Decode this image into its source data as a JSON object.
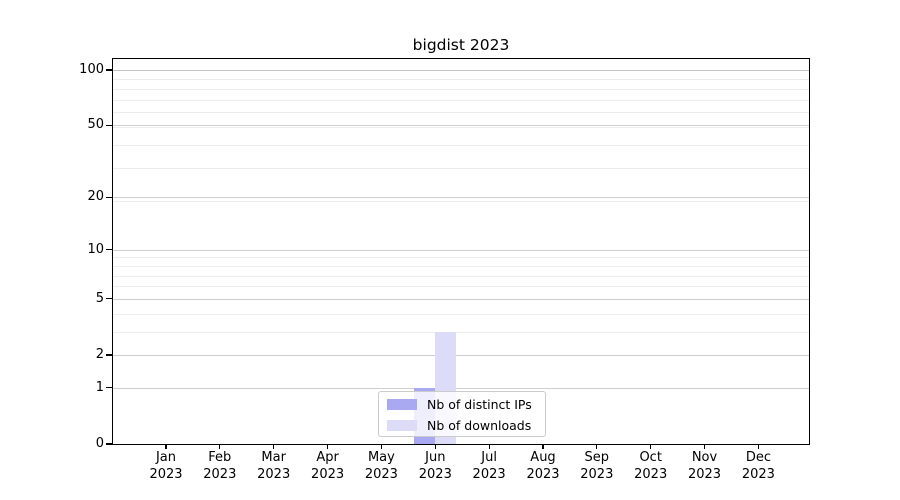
{
  "title": "bigdist 2023",
  "legend": {
    "items": [
      {
        "label": "Nb of distinct IPs",
        "color": "#a9a9f2"
      },
      {
        "label": "Nb of downloads",
        "color": "#dcdcf8"
      }
    ]
  },
  "chart_data": {
    "type": "bar",
    "title": "bigdist 2023",
    "categories": [
      {
        "month": "Jan",
        "year": "2023"
      },
      {
        "month": "Feb",
        "year": "2023"
      },
      {
        "month": "Mar",
        "year": "2023"
      },
      {
        "month": "Apr",
        "year": "2023"
      },
      {
        "month": "May",
        "year": "2023"
      },
      {
        "month": "Jun",
        "year": "2023"
      },
      {
        "month": "Jul",
        "year": "2023"
      },
      {
        "month": "Aug",
        "year": "2023"
      },
      {
        "month": "Sep",
        "year": "2023"
      },
      {
        "month": "Oct",
        "year": "2023"
      },
      {
        "month": "Nov",
        "year": "2023"
      },
      {
        "month": "Dec",
        "year": "2023"
      }
    ],
    "series": [
      {
        "name": "Nb of distinct IPs",
        "color": "#a9a9f2",
        "values": [
          0,
          0,
          0,
          0,
          0,
          1,
          0,
          0,
          0,
          0,
          0,
          0
        ]
      },
      {
        "name": "Nb of downloads",
        "color": "#dcdcf8",
        "values": [
          0,
          0,
          0,
          0,
          0,
          3,
          0,
          0,
          0,
          0,
          0,
          0
        ]
      }
    ],
    "xlabel": "",
    "ylabel": "",
    "y_axis": {
      "scale": "log1p",
      "range": [
        0,
        100
      ],
      "ticks": [
        0,
        1,
        2,
        5,
        10,
        20,
        50,
        100
      ],
      "minor_ticks": [
        3,
        4,
        6,
        7,
        8,
        9,
        19,
        29,
        39,
        49,
        59,
        69,
        79,
        89
      ]
    },
    "grid": "horizontal, major and minor",
    "legend_position": "lower center"
  }
}
